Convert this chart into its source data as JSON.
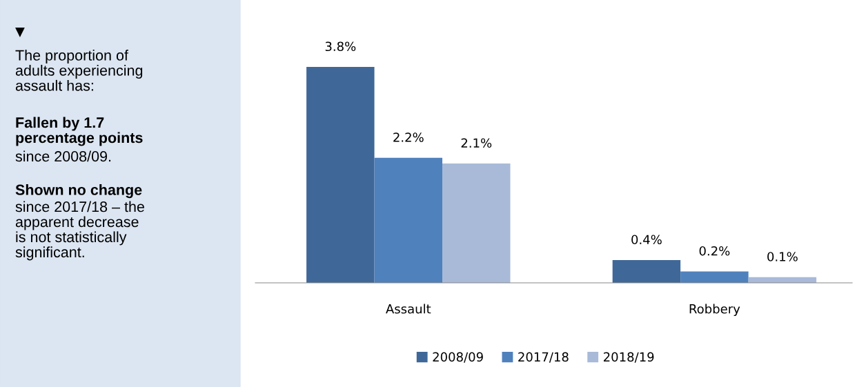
{
  "chart_data": {
    "type": "bar",
    "categories": [
      "Assault",
      "Robbery"
    ],
    "series": [
      {
        "name": "2008/09",
        "color": "#3f6898",
        "values": [
          3.8,
          0.4
        ],
        "value_labels": [
          "3.8%",
          "0.4%"
        ]
      },
      {
        "name": "2017/18",
        "color": "#4f81bd",
        "values": [
          2.2,
          0.2
        ],
        "value_labels": [
          "2.2%",
          "0.2%"
        ]
      },
      {
        "name": "2018/19",
        "color": "#a9bad8",
        "values": [
          2.1,
          0.1
        ],
        "value_labels": [
          "2.1%",
          "0.1%"
        ]
      }
    ],
    "legend": "bottom",
    "grid": false,
    "annotations": [
      "▼",
      "The proportion of\nadults experiencing\nassault has:",
      "Fallen by 1.7\npercentage points",
      "since 2008/09.",
      "Shown no change",
      "since 2017/18 – the\napparent decrease\nis not statistically\nsignificant."
    ]
  }
}
